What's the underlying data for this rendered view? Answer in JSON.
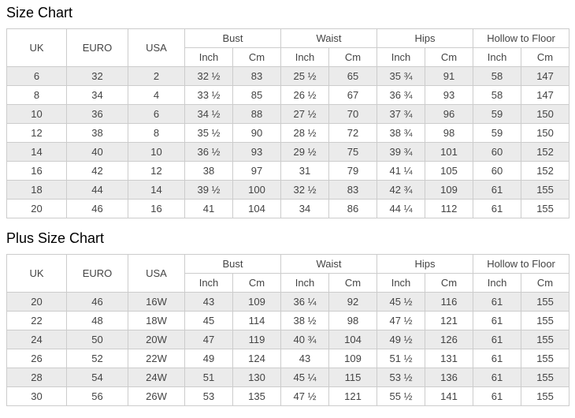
{
  "colors": {
    "border": "#cccccc",
    "row_alt": "#ebebeb",
    "text": "#444444",
    "title": "#000000",
    "background": "#ffffff"
  },
  "columns": {
    "simple": [
      "UK",
      "EURO",
      "USA"
    ],
    "groups": [
      "Bust",
      "Waist",
      "Hips",
      "Hollow to Floor"
    ],
    "sub_units": [
      "Inch",
      "Cm"
    ]
  },
  "tables": [
    {
      "title": "Size Chart",
      "rows": [
        [
          "6",
          "32",
          "2",
          "32 ½",
          "83",
          "25 ½",
          "65",
          "35 ¾",
          "91",
          "58",
          "147"
        ],
        [
          "8",
          "34",
          "4",
          "33 ½",
          "85",
          "26 ½",
          "67",
          "36 ¾",
          "93",
          "58",
          "147"
        ],
        [
          "10",
          "36",
          "6",
          "34 ½",
          "88",
          "27 ½",
          "70",
          "37 ¾",
          "96",
          "59",
          "150"
        ],
        [
          "12",
          "38",
          "8",
          "35 ½",
          "90",
          "28 ½",
          "72",
          "38 ¾",
          "98",
          "59",
          "150"
        ],
        [
          "14",
          "40",
          "10",
          "36 ½",
          "93",
          "29 ½",
          "75",
          "39 ¾",
          "101",
          "60",
          "152"
        ],
        [
          "16",
          "42",
          "12",
          "38",
          "97",
          "31",
          "79",
          "41 ¼",
          "105",
          "60",
          "152"
        ],
        [
          "18",
          "44",
          "14",
          "39 ½",
          "100",
          "32 ½",
          "83",
          "42 ¾",
          "109",
          "61",
          "155"
        ],
        [
          "20",
          "46",
          "16",
          "41",
          "104",
          "34",
          "86",
          "44 ¼",
          "112",
          "61",
          "155"
        ]
      ]
    },
    {
      "title": "Plus Size Chart",
      "rows": [
        [
          "20",
          "46",
          "16W",
          "43",
          "109",
          "36 ¼",
          "92",
          "45 ½",
          "116",
          "61",
          "155"
        ],
        [
          "22",
          "48",
          "18W",
          "45",
          "114",
          "38 ½",
          "98",
          "47 ½",
          "121",
          "61",
          "155"
        ],
        [
          "24",
          "50",
          "20W",
          "47",
          "119",
          "40 ¾",
          "104",
          "49 ½",
          "126",
          "61",
          "155"
        ],
        [
          "26",
          "52",
          "22W",
          "49",
          "124",
          "43",
          "109",
          "51 ½",
          "131",
          "61",
          "155"
        ],
        [
          "28",
          "54",
          "24W",
          "51",
          "130",
          "45 ¼",
          "115",
          "53 ½",
          "136",
          "61",
          "155"
        ],
        [
          "30",
          "56",
          "26W",
          "53",
          "135",
          "47 ½",
          "121",
          "55 ½",
          "141",
          "61",
          "155"
        ]
      ]
    }
  ]
}
